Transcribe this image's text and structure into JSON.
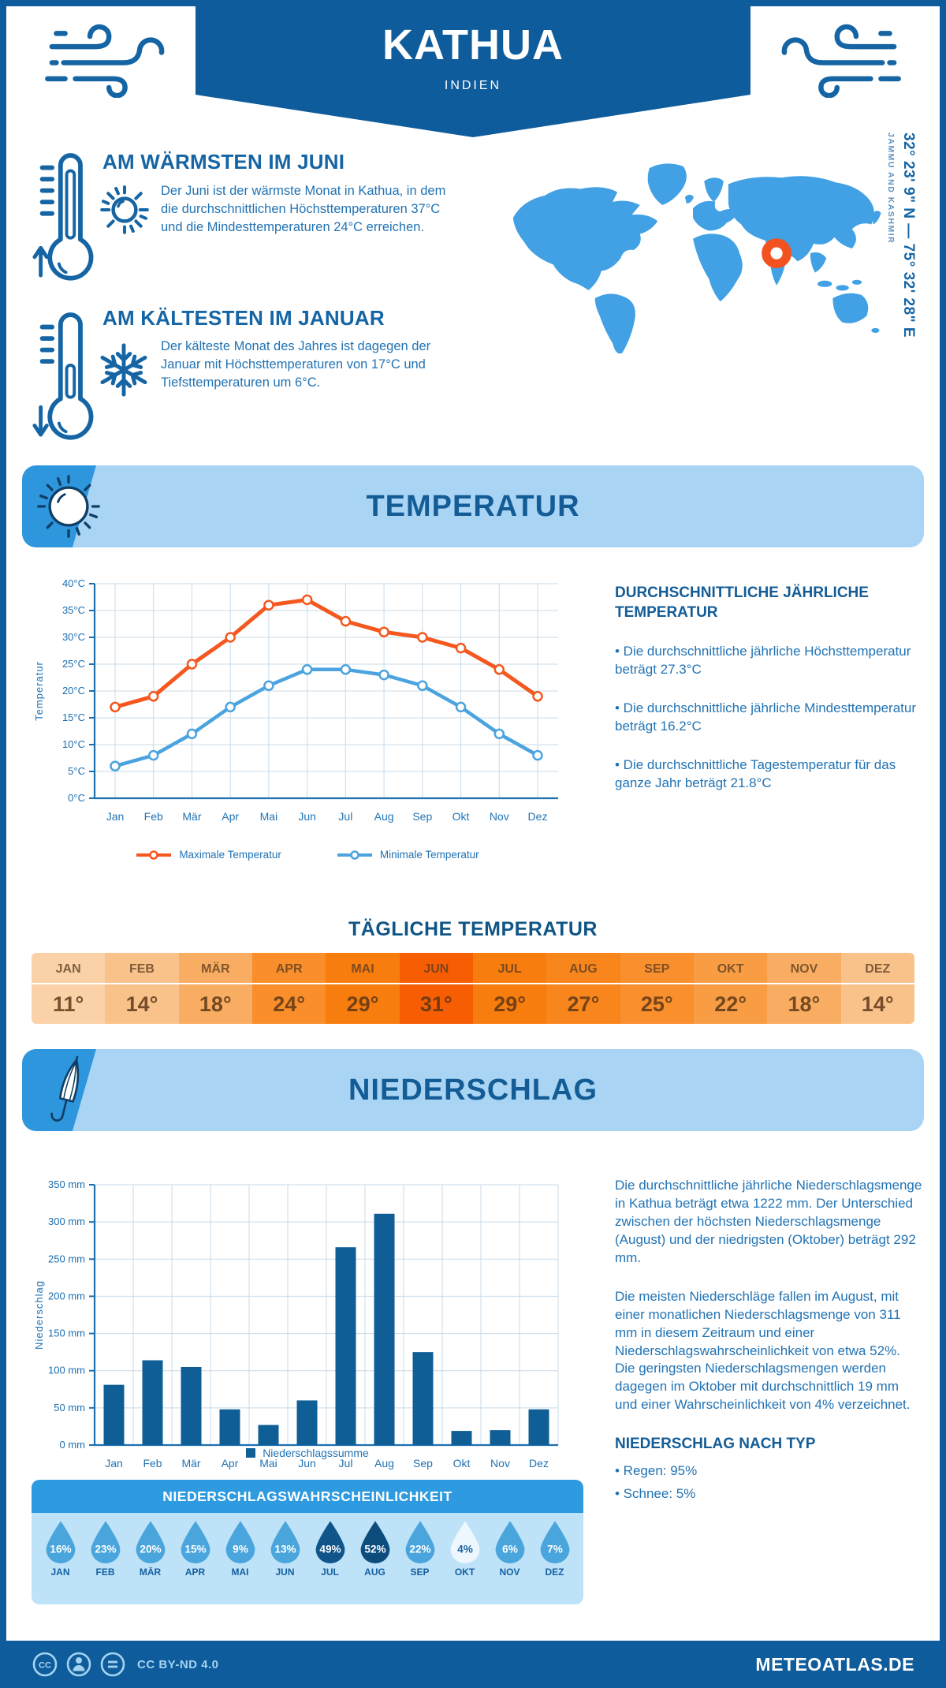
{
  "header": {
    "title": "KATHUA",
    "subtitle": "INDIEN"
  },
  "highlights": {
    "warm": {
      "title": "AM WÄRMSTEN IM JUNI",
      "text": "Der Juni ist der wärmste Monat in Kathua, in dem die durchschnittlichen Höchsttemperaturen 37°C und die Mindesttemperaturen 24°C erreichen."
    },
    "cold": {
      "title": "AM KÄLTESTEN IM JANUAR",
      "text": "Der kälteste Monat des Jahres ist dagegen der Januar mit Höchsttemperaturen von 17°C und Tiefsttemperaturen um 6°C."
    }
  },
  "location": {
    "coordinates": "32° 23' 9\" N — 75° 32' 28\" E",
    "region": "JAMMU AND KASHMIR"
  },
  "temperature_section": {
    "banner": "TEMPERATUR"
  },
  "precipitation_section": {
    "banner": "NIEDERSCHLAG"
  },
  "chart_data": [
    {
      "type": "line",
      "categories": [
        "Jan",
        "Feb",
        "Mär",
        "Apr",
        "Mai",
        "Jun",
        "Jul",
        "Aug",
        "Sep",
        "Okt",
        "Nov",
        "Dez"
      ],
      "series": [
        {
          "name": "Maximale Temperatur",
          "color": "#F4581F",
          "values": [
            17,
            19,
            25,
            30,
            36,
            37,
            33,
            31,
            30,
            28,
            24,
            19
          ]
        },
        {
          "name": "Minimale Temperatur",
          "color": "#4BA3DF",
          "values": [
            6,
            8,
            12,
            17,
            21,
            24,
            24,
            23,
            21,
            17,
            12,
            8
          ]
        }
      ],
      "ylabel": "Temperatur",
      "xlabel": "",
      "title": "",
      "ylim": [
        0,
        40
      ],
      "ystep": 5,
      "ytick_suffix": "°C",
      "grid": true,
      "legend_position": "bottom"
    },
    {
      "type": "bar",
      "categories": [
        "Jan",
        "Feb",
        "Mär",
        "Apr",
        "Mai",
        "Jun",
        "Jul",
        "Aug",
        "Sep",
        "Okt",
        "Nov",
        "Dez"
      ],
      "values": [
        81,
        114,
        105,
        48,
        27,
        60,
        266,
        311,
        125,
        19,
        20,
        48
      ],
      "series_name": "Niederschlagssumme",
      "ylabel": "Niederschlag",
      "xlabel": "",
      "title": "",
      "ylim": [
        0,
        350
      ],
      "ystep": 50,
      "ytick_suffix": " mm",
      "bar_color": "#0F5E96",
      "grid": true,
      "legend_position": "bottom"
    }
  ],
  "temperature_aside": {
    "title": "DURCHSCHNITTLICHE JÄHRLICHE TEMPERATUR",
    "bullets": [
      "• Die durchschnittliche jährliche Höchsttemperatur beträgt 27.3°C",
      "• Die durchschnittliche jährliche Mindesttemperatur beträgt 16.2°C",
      "• Die durchschnittliche Tagestemperatur für das ganze Jahr beträgt 21.8°C"
    ]
  },
  "daily_temperature": {
    "title": "TÄGLICHE TEMPERATUR",
    "months": [
      "JAN",
      "FEB",
      "MÄR",
      "APR",
      "MAI",
      "JUN",
      "JUL",
      "AUG",
      "SEP",
      "OKT",
      "NOV",
      "DEZ"
    ],
    "values": [
      "11°",
      "14°",
      "18°",
      "24°",
      "29°",
      "31°",
      "29°",
      "27°",
      "25°",
      "22°",
      "18°",
      "14°"
    ],
    "cell_colors": [
      "#FBD2A7",
      "#FAC28B",
      "#F9AD62",
      "#F98E2B",
      "#F87D0F",
      "#F75E04",
      "#F87D0F",
      "#F9861C",
      "#F98F2D",
      "#F99D45",
      "#F9AD62",
      "#FAC28B"
    ]
  },
  "precipitation_aside": {
    "paragraphs": [
      "Die durchschnittliche jährliche Niederschlagsmenge in Kathua beträgt etwa 1222 mm. Der Unterschied zwischen der höchsten Niederschlagsmenge (August) und der niedrigsten (Oktober) beträgt 292 mm.",
      "Die meisten Niederschläge fallen im August, mit einer monatlichen Niederschlagsmenge von 311 mm in diesem Zeitraum und einer Niederschlagswahrscheinlichkeit von etwa 52%. Die geringsten Niederschlagsmengen werden dagegen im Oktober mit durchschnittlich 19 mm und einer Wahrscheinlichkeit von 4% verzeichnet."
    ],
    "type_title": "NIEDERSCHLAG NACH TYP",
    "types": [
      "• Regen: 95%",
      "• Schnee: 5%"
    ]
  },
  "probability": {
    "title": "NIEDERSCHLAGSWAHRSCHEINLICHKEIT",
    "months": [
      "JAN",
      "FEB",
      "MÄR",
      "APR",
      "MAI",
      "JUN",
      "JUL",
      "AUG",
      "SEP",
      "OKT",
      "NOV",
      "DEZ"
    ],
    "values": [
      "16%",
      "23%",
      "20%",
      "15%",
      "9%",
      "13%",
      "49%",
      "52%",
      "22%",
      "4%",
      "6%",
      "7%"
    ],
    "drop_colors": [
      "#4AA5DC",
      "#4AA5DC",
      "#4AA5DC",
      "#4AA5DC",
      "#4AA5DC",
      "#4AA5DC",
      "#10558A",
      "#0D4D7E",
      "#4AA5DC",
      "#EDF7FD",
      "#4AA5DC",
      "#4AA5DC"
    ],
    "text_colors": [
      "#FFFFFF",
      "#FFFFFF",
      "#FFFFFF",
      "#FFFFFF",
      "#FFFFFF",
      "#FFFFFF",
      "#FFFFFF",
      "#FFFFFF",
      "#FFFFFF",
      "#18639E",
      "#FFFFFF",
      "#FFFFFF"
    ]
  },
  "colors": {
    "brand_navy": "#0E5C9B",
    "map_blue": "#41A1E4",
    "marker_orange": "#F3511F"
  },
  "footer": {
    "license": "CC BY-ND 4.0",
    "brand": "METEOATLAS.DE"
  }
}
